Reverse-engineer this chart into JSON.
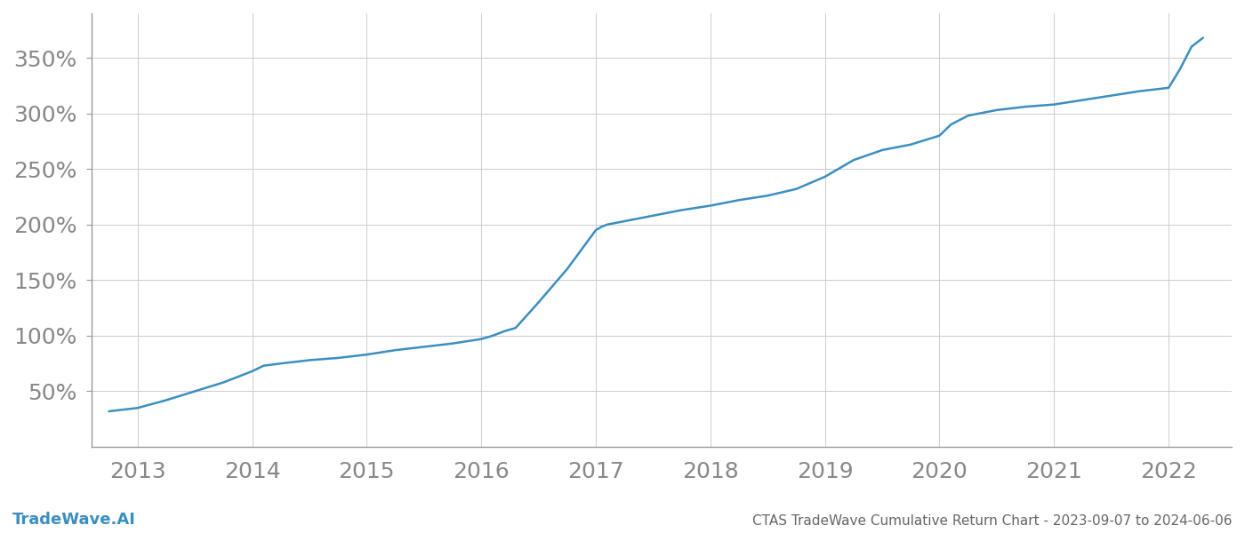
{
  "title": "CTAS TradeWave Cumulative Return Chart - 2023-09-07 to 2024-06-06",
  "watermark": "TradeWave.AI",
  "line_color": "#3a8fc0",
  "background_color": "#ffffff",
  "grid_color": "#cccccc",
  "x_years": [
    2013,
    2014,
    2015,
    2016,
    2017,
    2018,
    2019,
    2020,
    2021,
    2022
  ],
  "data_points": [
    [
      2012.75,
      32
    ],
    [
      2013.0,
      35
    ],
    [
      2013.25,
      42
    ],
    [
      2013.5,
      50
    ],
    [
      2013.75,
      58
    ],
    [
      2014.0,
      68
    ],
    [
      2014.1,
      73
    ],
    [
      2014.25,
      75
    ],
    [
      2014.5,
      78
    ],
    [
      2014.75,
      80
    ],
    [
      2015.0,
      83
    ],
    [
      2015.25,
      87
    ],
    [
      2015.5,
      90
    ],
    [
      2015.75,
      93
    ],
    [
      2016.0,
      97
    ],
    [
      2016.1,
      100
    ],
    [
      2016.15,
      102
    ],
    [
      2016.2,
      104
    ],
    [
      2016.3,
      107
    ],
    [
      2016.5,
      130
    ],
    [
      2016.75,
      160
    ],
    [
      2017.0,
      195
    ],
    [
      2017.05,
      198
    ],
    [
      2017.1,
      200
    ],
    [
      2017.25,
      203
    ],
    [
      2017.5,
      208
    ],
    [
      2017.75,
      213
    ],
    [
      2018.0,
      217
    ],
    [
      2018.25,
      222
    ],
    [
      2018.5,
      226
    ],
    [
      2018.75,
      232
    ],
    [
      2019.0,
      243
    ],
    [
      2019.25,
      258
    ],
    [
      2019.5,
      267
    ],
    [
      2019.75,
      272
    ],
    [
      2020.0,
      280
    ],
    [
      2020.1,
      290
    ],
    [
      2020.25,
      298
    ],
    [
      2020.5,
      303
    ],
    [
      2020.75,
      306
    ],
    [
      2021.0,
      308
    ],
    [
      2021.25,
      312
    ],
    [
      2021.5,
      316
    ],
    [
      2021.75,
      320
    ],
    [
      2022.0,
      323
    ],
    [
      2022.1,
      340
    ],
    [
      2022.2,
      360
    ],
    [
      2022.3,
      368
    ]
  ],
  "yticks": [
    50,
    100,
    150,
    200,
    250,
    300,
    350
  ],
  "ylim": [
    0,
    390
  ],
  "xlim": [
    2012.6,
    2022.55
  ],
  "title_fontsize": 11,
  "watermark_fontsize": 13,
  "tick_fontsize": 18,
  "title_color": "#666666",
  "watermark_color": "#3a8fc0",
  "tick_color": "#888888",
  "spine_color": "#999999"
}
